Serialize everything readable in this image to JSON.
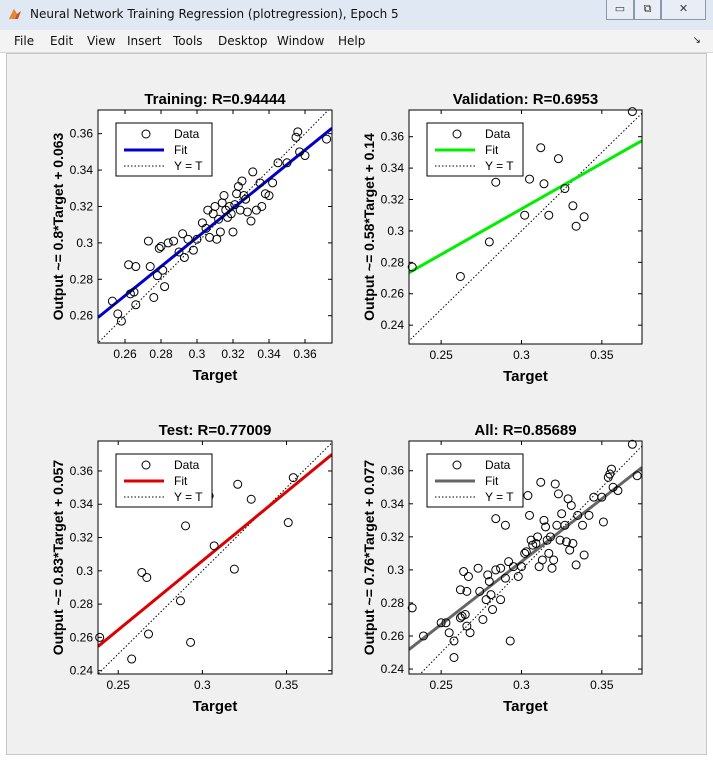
{
  "window": {
    "title": "Neural Network Training Regression (plotregression), Epoch 5",
    "buttons": [
      "▭",
      "⧉",
      "✕"
    ]
  },
  "menu": [
    "File",
    "Edit",
    "View",
    "Insert",
    "Tools",
    "Desktop",
    "Window",
    "Help"
  ],
  "colors": {
    "training": "#0000cc",
    "validation": "#00ee00",
    "test": "#dd0000",
    "all": "#666666"
  },
  "chart_data": [
    {
      "type": "scatter",
      "title": "Training: R=0.94444",
      "xlabel": "Target",
      "ylabel": "Output ~= 0.8*Target + 0.063",
      "xlim": [
        0.245,
        0.375
      ],
      "ylim": [
        0.245,
        0.373
      ],
      "xticks": [
        0.26,
        0.28,
        0.3,
        0.32,
        0.34,
        0.36
      ],
      "yticks": [
        0.26,
        0.28,
        0.3,
        0.32,
        0.34,
        0.36
      ],
      "xtick_labels": [
        "0.26",
        "0.28",
        "0.3",
        "0.32",
        "0.34",
        "0.36"
      ],
      "ytick_labels": [
        "0.26",
        "0.28",
        "0.3",
        "0.32",
        "0.34",
        "0.36"
      ],
      "fit": {
        "slope": 0.8,
        "intercept": 0.063
      },
      "fit_color": "#0000cc",
      "legend": [
        "Data",
        "Fit",
        "Y = T"
      ],
      "points": [
        [
          0.253,
          0.268
        ],
        [
          0.256,
          0.261
        ],
        [
          0.258,
          0.257
        ],
        [
          0.262,
          0.288
        ],
        [
          0.263,
          0.272
        ],
        [
          0.265,
          0.273
        ],
        [
          0.266,
          0.287
        ],
        [
          0.266,
          0.266
        ],
        [
          0.273,
          0.301
        ],
        [
          0.274,
          0.287
        ],
        [
          0.276,
          0.27
        ],
        [
          0.278,
          0.282
        ],
        [
          0.279,
          0.297
        ],
        [
          0.28,
          0.298
        ],
        [
          0.281,
          0.285
        ],
        [
          0.282,
          0.276
        ],
        [
          0.284,
          0.3
        ],
        [
          0.287,
          0.301
        ],
        [
          0.29,
          0.295
        ],
        [
          0.292,
          0.305
        ],
        [
          0.293,
          0.292
        ],
        [
          0.295,
          0.302
        ],
        [
          0.298,
          0.296
        ],
        [
          0.3,
          0.302
        ],
        [
          0.303,
          0.311
        ],
        [
          0.305,
          0.308
        ],
        [
          0.306,
          0.318
        ],
        [
          0.307,
          0.303
        ],
        [
          0.309,
          0.316
        ],
        [
          0.31,
          0.32
        ],
        [
          0.311,
          0.302
        ],
        [
          0.312,
          0.313
        ],
        [
          0.313,
          0.306
        ],
        [
          0.314,
          0.322
        ],
        [
          0.315,
          0.326
        ],
        [
          0.316,
          0.318
        ],
        [
          0.317,
          0.314
        ],
        [
          0.318,
          0.32
        ],
        [
          0.319,
          0.316
        ],
        [
          0.32,
          0.306
        ],
        [
          0.321,
          0.321
        ],
        [
          0.322,
          0.327
        ],
        [
          0.323,
          0.331
        ],
        [
          0.324,
          0.318
        ],
        [
          0.325,
          0.334
        ],
        [
          0.326,
          0.326
        ],
        [
          0.327,
          0.324
        ],
        [
          0.328,
          0.317
        ],
        [
          0.33,
          0.312
        ],
        [
          0.331,
          0.339
        ],
        [
          0.333,
          0.318
        ],
        [
          0.335,
          0.333
        ],
        [
          0.336,
          0.32
        ],
        [
          0.338,
          0.327
        ],
        [
          0.34,
          0.326
        ],
        [
          0.342,
          0.333
        ],
        [
          0.345,
          0.344
        ],
        [
          0.35,
          0.344
        ],
        [
          0.355,
          0.358
        ],
        [
          0.356,
          0.361
        ],
        [
          0.357,
          0.35
        ],
        [
          0.36,
          0.348
        ],
        [
          0.372,
          0.357
        ]
      ]
    },
    {
      "type": "scatter",
      "title": "Validation: R=0.6953",
      "xlabel": "Target",
      "ylabel": "Output ~= 0.58*Target + 0.14",
      "xlim": [
        0.23,
        0.375
      ],
      "ylim": [
        0.228,
        0.377
      ],
      "xticks": [
        0.25,
        0.3,
        0.35
      ],
      "yticks": [
        0.24,
        0.26,
        0.28,
        0.3,
        0.32,
        0.34,
        0.36
      ],
      "xtick_labels": [
        "0.25",
        "0.3",
        "0.35"
      ],
      "ytick_labels": [
        "0.24",
        "0.26",
        "0.28",
        "0.3",
        "0.32",
        "0.34",
        "0.36"
      ],
      "fit": {
        "slope": 0.58,
        "intercept": 0.14
      },
      "fit_color": "#00ee00",
      "legend": [
        "Data",
        "Fit",
        "Y = T"
      ],
      "points": [
        [
          0.232,
          0.277
        ],
        [
          0.262,
          0.271
        ],
        [
          0.28,
          0.293
        ],
        [
          0.284,
          0.331
        ],
        [
          0.302,
          0.31
        ],
        [
          0.305,
          0.333
        ],
        [
          0.312,
          0.353
        ],
        [
          0.314,
          0.33
        ],
        [
          0.317,
          0.31
        ],
        [
          0.323,
          0.346
        ],
        [
          0.327,
          0.327
        ],
        [
          0.332,
          0.316
        ],
        [
          0.334,
          0.303
        ],
        [
          0.339,
          0.309
        ],
        [
          0.369,
          0.376
        ]
      ]
    },
    {
      "type": "scatter",
      "title": "Test: R=0.77009",
      "xlabel": "Target",
      "ylabel": "Output ~= 0.83*Target + 0.057",
      "xlim": [
        0.238,
        0.377
      ],
      "ylim": [
        0.238,
        0.378
      ],
      "xticks": [
        0.25,
        0.3,
        0.35
      ],
      "yticks": [
        0.24,
        0.26,
        0.28,
        0.3,
        0.32,
        0.34,
        0.36
      ],
      "xtick_labels": [
        "0.25",
        "0.3",
        "0.35"
      ],
      "ytick_labels": [
        "0.24",
        "0.26",
        "0.28",
        "0.3",
        "0.32",
        "0.34",
        "0.36"
      ],
      "fit": {
        "slope": 0.83,
        "intercept": 0.057
      },
      "fit_color": "#dd0000",
      "legend": [
        "Data",
        "Fit",
        "Y = T"
      ],
      "points": [
        [
          0.239,
          0.26
        ],
        [
          0.258,
          0.247
        ],
        [
          0.264,
          0.299
        ],
        [
          0.267,
          0.296
        ],
        [
          0.268,
          0.262
        ],
        [
          0.287,
          0.282
        ],
        [
          0.29,
          0.327
        ],
        [
          0.293,
          0.257
        ],
        [
          0.304,
          0.345
        ],
        [
          0.307,
          0.315
        ],
        [
          0.319,
          0.301
        ],
        [
          0.321,
          0.352
        ],
        [
          0.329,
          0.343
        ],
        [
          0.351,
          0.329
        ],
        [
          0.354,
          0.356
        ]
      ]
    },
    {
      "type": "scatter",
      "title": "All: R=0.85689",
      "xlabel": "Target",
      "ylabel": "Output ~= 0.76*Target + 0.077",
      "xlim": [
        0.23,
        0.375
      ],
      "ylim": [
        0.237,
        0.378
      ],
      "xticks": [
        0.25,
        0.3,
        0.35
      ],
      "yticks": [
        0.24,
        0.26,
        0.28,
        0.3,
        0.32,
        0.34,
        0.36
      ],
      "xtick_labels": [
        "0.25",
        "0.3",
        "0.35"
      ],
      "ytick_labels": [
        "0.24",
        "0.26",
        "0.28",
        "0.3",
        "0.32",
        "0.34",
        "0.36"
      ],
      "fit": {
        "slope": 0.76,
        "intercept": 0.077
      },
      "fit_color": "#666666",
      "legend": [
        "Data",
        "Fit",
        "Y = T"
      ],
      "points": [
        [
          0.232,
          0.277
        ],
        [
          0.239,
          0.26
        ],
        [
          0.25,
          0.268
        ],
        [
          0.253,
          0.268
        ],
        [
          0.255,
          0.262
        ],
        [
          0.258,
          0.247
        ],
        [
          0.258,
          0.257
        ],
        [
          0.262,
          0.288
        ],
        [
          0.262,
          0.271
        ],
        [
          0.263,
          0.272
        ],
        [
          0.264,
          0.299
        ],
        [
          0.265,
          0.273
        ],
        [
          0.266,
          0.287
        ],
        [
          0.266,
          0.266
        ],
        [
          0.267,
          0.296
        ],
        [
          0.268,
          0.262
        ],
        [
          0.273,
          0.301
        ],
        [
          0.274,
          0.287
        ],
        [
          0.276,
          0.27
        ],
        [
          0.278,
          0.282
        ],
        [
          0.279,
          0.297
        ],
        [
          0.28,
          0.293
        ],
        [
          0.281,
          0.285
        ],
        [
          0.282,
          0.276
        ],
        [
          0.284,
          0.331
        ],
        [
          0.284,
          0.3
        ],
        [
          0.287,
          0.282
        ],
        [
          0.287,
          0.301
        ],
        [
          0.29,
          0.327
        ],
        [
          0.29,
          0.295
        ],
        [
          0.292,
          0.305
        ],
        [
          0.293,
          0.257
        ],
        [
          0.295,
          0.302
        ],
        [
          0.298,
          0.296
        ],
        [
          0.3,
          0.302
        ],
        [
          0.302,
          0.31
        ],
        [
          0.303,
          0.311
        ],
        [
          0.304,
          0.345
        ],
        [
          0.305,
          0.333
        ],
        [
          0.306,
          0.318
        ],
        [
          0.307,
          0.315
        ],
        [
          0.309,
          0.316
        ],
        [
          0.31,
          0.32
        ],
        [
          0.311,
          0.302
        ],
        [
          0.312,
          0.353
        ],
        [
          0.313,
          0.306
        ],
        [
          0.314,
          0.33
        ],
        [
          0.315,
          0.326
        ],
        [
          0.316,
          0.318
        ],
        [
          0.317,
          0.31
        ],
        [
          0.318,
          0.32
        ],
        [
          0.319,
          0.301
        ],
        [
          0.32,
          0.306
        ],
        [
          0.321,
          0.352
        ],
        [
          0.322,
          0.327
        ],
        [
          0.323,
          0.346
        ],
        [
          0.324,
          0.318
        ],
        [
          0.325,
          0.334
        ],
        [
          0.327,
          0.327
        ],
        [
          0.328,
          0.317
        ],
        [
          0.329,
          0.343
        ],
        [
          0.33,
          0.312
        ],
        [
          0.331,
          0.339
        ],
        [
          0.332,
          0.316
        ],
        [
          0.334,
          0.303
        ],
        [
          0.335,
          0.333
        ],
        [
          0.338,
          0.327
        ],
        [
          0.339,
          0.309
        ],
        [
          0.342,
          0.333
        ],
        [
          0.345,
          0.344
        ],
        [
          0.35,
          0.344
        ],
        [
          0.351,
          0.329
        ],
        [
          0.354,
          0.356
        ],
        [
          0.355,
          0.358
        ],
        [
          0.356,
          0.361
        ],
        [
          0.357,
          0.35
        ],
        [
          0.36,
          0.348
        ],
        [
          0.369,
          0.376
        ],
        [
          0.372,
          0.357
        ]
      ]
    }
  ]
}
